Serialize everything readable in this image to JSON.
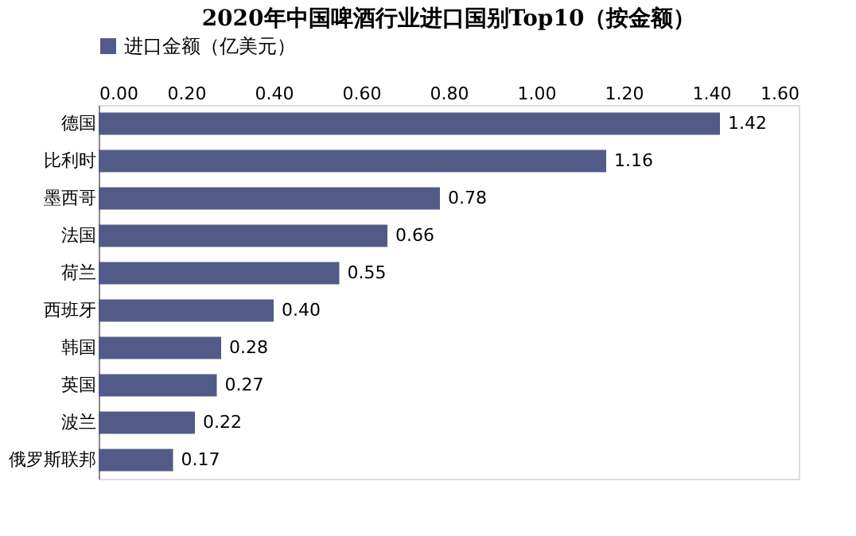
{
  "chart_data": {
    "type": "bar",
    "orientation": "horizontal",
    "title": "2020年中国啤酒行业进口国别Top10（按金额）",
    "categories": [
      "德国",
      "比利时",
      "墨西哥",
      "法国",
      "荷兰",
      "西班牙",
      "韩国",
      "英国",
      "波兰",
      "俄罗斯联邦"
    ],
    "series": [
      {
        "name": "进口金额（亿美元）",
        "color": "#525b88",
        "values": [
          1.42,
          1.16,
          0.78,
          0.66,
          0.55,
          0.4,
          0.28,
          0.27,
          0.22,
          0.17
        ]
      }
    ],
    "value_labels": [
      "1.42",
      "1.16",
      "0.78",
      "0.66",
      "0.55",
      "0.40",
      "0.28",
      "0.27",
      "0.22",
      "0.17"
    ],
    "xlim": [
      0,
      1.6
    ],
    "xticks": [
      {
        "value": 0,
        "label": "0.00"
      },
      {
        "value": 0.2,
        "label": "0.20"
      },
      {
        "value": 0.4,
        "label": "0.40"
      },
      {
        "value": 0.6,
        "label": "0.60"
      },
      {
        "value": 0.8,
        "label": "0.80"
      },
      {
        "value": 1.0,
        "label": "1.00"
      },
      {
        "value": 1.2,
        "label": "1.20"
      },
      {
        "value": 1.4,
        "label": "1.40"
      },
      {
        "value": 1.6,
        "label": "1.60"
      }
    ],
    "grid": false,
    "legend": "top"
  }
}
